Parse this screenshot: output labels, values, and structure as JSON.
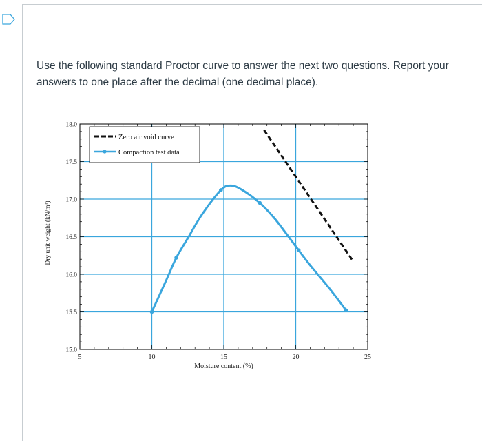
{
  "question": {
    "text": "Use the following standard Proctor curve to answer the next two questions.  Report your answers to one place after the decimal (one decimal place)."
  },
  "icons": {
    "flag": "bookmark-flag-icon"
  },
  "colors": {
    "accent": "#3aa6dd",
    "border": "#c7cdd1",
    "text": "#2d3b45"
  },
  "chart_data": {
    "type": "line",
    "xlabel": "Moisture content (%)",
    "ylabel": "Dry unit weight (kN/m³)",
    "xlim": [
      5,
      25
    ],
    "ylim": [
      15.0,
      18.0
    ],
    "xticks": [
      "5",
      "10",
      "15",
      "20",
      "25"
    ],
    "yticks": [
      "15.0",
      "15.5",
      "16.0",
      "16.5",
      "17.0",
      "17.5",
      "18.0"
    ],
    "grid": true,
    "legend_position": "top-left",
    "series": [
      {
        "name": "Zero air void curve",
        "style": "dashed",
        "color": "#111111",
        "x": [
          17.8,
          24.0
        ],
        "y": [
          17.92,
          16.17
        ]
      },
      {
        "name": "Compaction test data",
        "style": "solid",
        "color": "#3aa6dd",
        "x": [
          10.0,
          11.7,
          14.8,
          17.5,
          20.2,
          23.5
        ],
        "y": [
          15.5,
          16.22,
          17.12,
          16.95,
          16.32,
          15.52
        ],
        "curve": [
          [
            10.0,
            15.5
          ],
          [
            11.0,
            15.92
          ],
          [
            11.7,
            16.22
          ],
          [
            12.5,
            16.48
          ],
          [
            13.5,
            16.8
          ],
          [
            14.8,
            17.12
          ],
          [
            15.5,
            17.18
          ],
          [
            16.3,
            17.12
          ],
          [
            17.5,
            16.95
          ],
          [
            18.5,
            16.75
          ],
          [
            19.5,
            16.5
          ],
          [
            20.2,
            16.32
          ],
          [
            21.0,
            16.12
          ],
          [
            22.3,
            15.82
          ],
          [
            23.5,
            15.52
          ]
        ]
      }
    ]
  }
}
